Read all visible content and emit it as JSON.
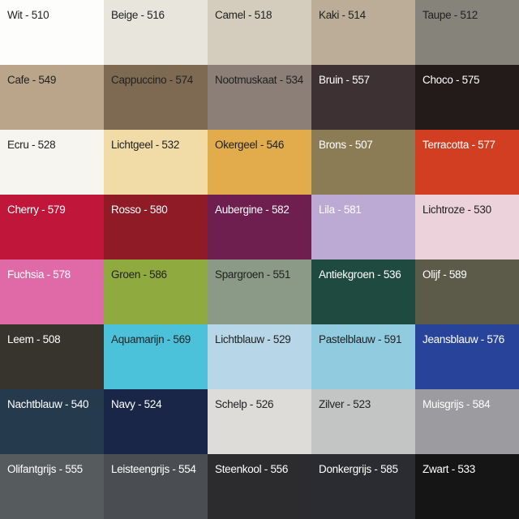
{
  "swatches": [
    {
      "label": "Wit - 510",
      "color": "#fdfdfc",
      "text": "#222222"
    },
    {
      "label": "Beige - 516",
      "color": "#e8e5dc",
      "text": "#222222"
    },
    {
      "label": "Camel - 518",
      "color": "#d4ccbc",
      "text": "#222222"
    },
    {
      "label": "Kaki - 514",
      "color": "#bcad98",
      "text": "#222222"
    },
    {
      "label": "Taupe - 512",
      "color": "#86837a",
      "text": "#222222"
    },
    {
      "label": "Cafe - 549",
      "color": "#bba58a",
      "text": "#222222"
    },
    {
      "label": "Cappuccino - 574",
      "color": "#7e6a52",
      "text": "#222222"
    },
    {
      "label": "Nootmuskaat - 534",
      "color": "#8b7f77",
      "text": "#222222"
    },
    {
      "label": "Bruin - 557",
      "color": "#3e3133",
      "text": "#ffffff"
    },
    {
      "label": "Choco - 575",
      "color": "#221b1a",
      "text": "#ffffff"
    },
    {
      "label": "Ecru - 528",
      "color": "#f6f5ef",
      "text": "#222222"
    },
    {
      "label": "Lichtgeel - 532",
      "color": "#f1dba6",
      "text": "#222222"
    },
    {
      "label": "Okergeel - 546",
      "color": "#e2ab4c",
      "text": "#222222"
    },
    {
      "label": "Brons - 507",
      "color": "#8b7c56",
      "text": "#ffffff"
    },
    {
      "label": "Terracotta - 577",
      "color": "#d23e22",
      "text": "#ffffff"
    },
    {
      "label": "Cherry - 579",
      "color": "#c0163a",
      "text": "#ffffff"
    },
    {
      "label": "Rosso - 580",
      "color": "#8e1b26",
      "text": "#ffffff"
    },
    {
      "label": "Aubergine - 582",
      "color": "#6e1e4f",
      "text": "#ffffff"
    },
    {
      "label": "Lila - 581",
      "color": "#bcaad4",
      "text": "#ffffff"
    },
    {
      "label": "Lichtroze - 530",
      "color": "#ecd2da",
      "text": "#222222"
    },
    {
      "label": "Fuchsia - 578",
      "color": "#df6aa7",
      "text": "#ffffff"
    },
    {
      "label": "Groen - 586",
      "color": "#8faa3e",
      "text": "#222222"
    },
    {
      "label": "Spargroen - 551",
      "color": "#8a9a86",
      "text": "#222222"
    },
    {
      "label": "Antiekgroen - 536",
      "color": "#1e4a3f",
      "text": "#ffffff"
    },
    {
      "label": "Olijf - 589",
      "color": "#5c5a48",
      "text": "#ffffff"
    },
    {
      "label": "Leem - 508",
      "color": "#37342e",
      "text": "#ffffff"
    },
    {
      "label": "Aquamarijn - 569",
      "color": "#4bc2da",
      "text": "#222222"
    },
    {
      "label": "Lichtblauw - 529",
      "color": "#b7d7e8",
      "text": "#222222"
    },
    {
      "label": "Pastelblauw - 591",
      "color": "#90cbe0",
      "text": "#222222"
    },
    {
      "label": "Jeansblauw - 576",
      "color": "#27449a",
      "text": "#ffffff"
    },
    {
      "label": "Nachtblauw - 540",
      "color": "#263a4e",
      "text": "#ffffff"
    },
    {
      "label": "Navy - 524",
      "color": "#1a2647",
      "text": "#ffffff"
    },
    {
      "label": "Schelp - 526",
      "color": "#dedcd8",
      "text": "#222222"
    },
    {
      "label": "Zilver - 523",
      "color": "#c3c5c4",
      "text": "#222222"
    },
    {
      "label": "Muisgrijs - 584",
      "color": "#9c9ba0",
      "text": "#ffffff"
    },
    {
      "label": "Olifantgrijs - 555",
      "color": "#565b5e",
      "text": "#ffffff"
    },
    {
      "label": "Leisteengrijs - 554",
      "color": "#4a4e52",
      "text": "#ffffff"
    },
    {
      "label": "Steenkool - 556",
      "color": "#2c2c2e",
      "text": "#ffffff"
    },
    {
      "label": "Donkergrijs - 585",
      "color": "#2a2c31",
      "text": "#ffffff"
    },
    {
      "label": "Zwart - 533",
      "color": "#151515",
      "text": "#ffffff"
    }
  ]
}
